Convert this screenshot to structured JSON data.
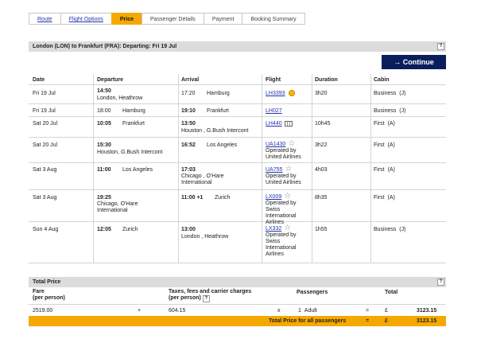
{
  "breadcrumb": [
    "Route",
    "Flight Options",
    "Price",
    "Passenger Details",
    "Payment",
    "Booking Summary"
  ],
  "journey_title": "London (LON) to Frankfurt (FRA): Departing: Fri 19 Jul",
  "help_label": "?",
  "continue_label": "Continue",
  "continue_icon": "arrow-right-icon",
  "headers": {
    "date": "Date",
    "departure": "Departure",
    "arrival": "Arrival",
    "flight": "Flight",
    "duration": "Duration",
    "cabin": "Cabin"
  },
  "flights": [
    {
      "date": "Fri 19 Jul",
      "dep_time": "14:50",
      "dep_place": "London, Heathrow",
      "dep_place2": "",
      "arr_time": "17:20",
      "arr_place": "Hamburg",
      "arr_place2": "",
      "flight": "LH3393",
      "op1": "",
      "op2": "",
      "op3": "",
      "duration": "3h20",
      "cabin": "Business",
      "cls": "(J)"
    },
    {
      "date": "Fri 19 Jul",
      "dep_time": "18:00",
      "dep_place": "Hamburg",
      "dep_place2": "",
      "arr_time": "19:10",
      "arr_place": "Frankfurt",
      "arr_place2": "",
      "flight": "LH027",
      "op1": "",
      "op2": "",
      "op3": "",
      "duration": "",
      "cabin": "Business",
      "cls": "(J)"
    },
    {
      "date": "Sat 20 Jul",
      "dep_time": "10:05",
      "dep_place": "Frankfurt",
      "dep_place2": "",
      "arr_time": "13:50",
      "arr_place": "Houston , G.Bush Intercont",
      "arr_place2": "",
      "flight": "LH440",
      "op1": "",
      "op2": "",
      "op3": "",
      "duration": "10h45",
      "cabin": "First",
      "cls": "(A)"
    },
    {
      "date": "Sat 20 Jul",
      "dep_time": "15:30",
      "dep_place": "Houston, G.Bush Intercont",
      "dep_place2": "",
      "arr_time": "16:52",
      "arr_place": "Los Angeles",
      "arr_place2": "",
      "flight": "UA1430",
      "op1": "Operated by",
      "op2": "United Airlines",
      "op3": "",
      "duration": "3h22",
      "cabin": "First",
      "cls": "(A)"
    },
    {
      "date": "Sat 3 Aug",
      "dep_time": "11:00",
      "dep_place": "Los Angeles",
      "dep_place2": "",
      "arr_time": "17:03",
      "arr_place": "Chicago , O'Hare",
      "arr_place2": "International",
      "flight": "UA755",
      "op1": "Operated by",
      "op2": "United Airlines",
      "op3": "",
      "duration": "4h03",
      "cabin": "First",
      "cls": "(A)"
    },
    {
      "date": "Sat 3 Aug",
      "dep_time": "19:25",
      "dep_place": "Chicago, O'Hare",
      "dep_place2": "International",
      "arr_time": "11:00 +1",
      "arr_place": "Zurich",
      "arr_place2": "",
      "flight": "LX009",
      "op1": "Operated by",
      "op2": "Swiss",
      "op3": "International Airlines",
      "duration": "8h35",
      "cabin": "First",
      "cls": "(A)"
    },
    {
      "date": "Sun 4 Aug",
      "dep_time": "12:05",
      "dep_place": "Zurich",
      "dep_place2": "",
      "arr_time": "13:00",
      "arr_place": "London , Heathrow",
      "arr_place2": "",
      "flight": "LX332",
      "op1": "Operated by",
      "op2": "Swiss",
      "op3": "International Airlines",
      "duration": "1h55",
      "cabin": "Business",
      "cls": "(J)"
    }
  ],
  "total_price": {
    "title": "Total Price",
    "fare_label": "Fare",
    "fare_sub": "(per person)",
    "taxes_label": "Taxes, fees and carrier charges",
    "taxes_sub": "(per person)",
    "passengers_label": "Passengers",
    "total_label": "Total",
    "fare": "2519.00",
    "plus": "+",
    "taxes": "604.15",
    "times": "x",
    "pax_count": "1",
    "pax_type": "Adult",
    "equals": "=",
    "currency": "£",
    "total": "3123.15",
    "grand_label": "Total Price for all passengers",
    "grand_equals": "=",
    "grand_currency": "£",
    "grand_total": "3123.15"
  }
}
